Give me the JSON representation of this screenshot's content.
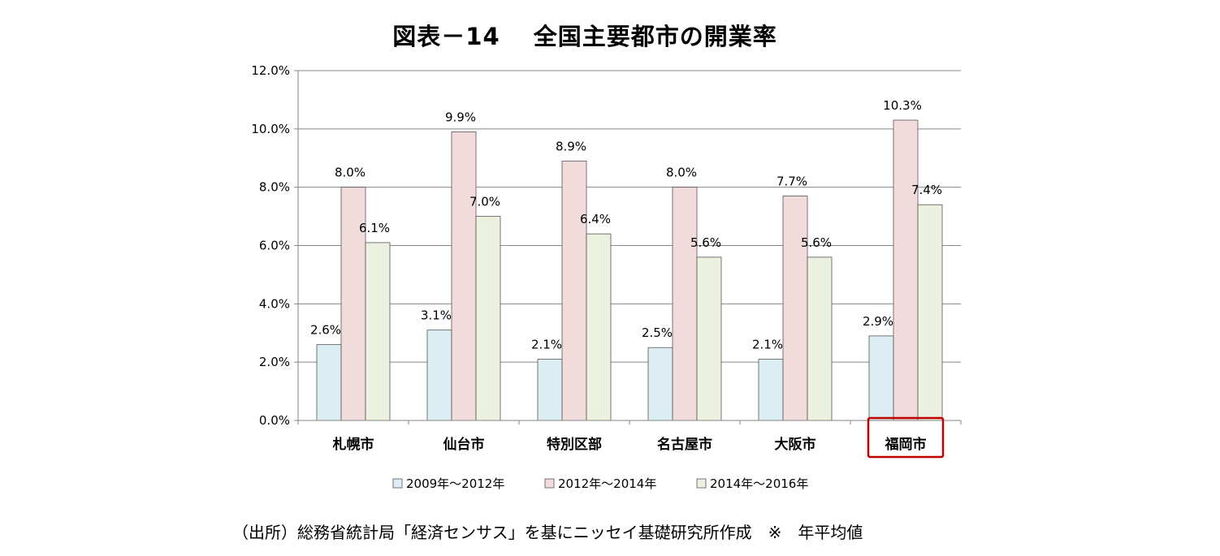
{
  "title": "図表－14　 全国主要都市の開業率",
  "source": "（出所）総務省統計局「経済センサス」を基にニッセイ基礎研究所作成　※　年平均値",
  "chart_data": {
    "type": "bar",
    "categories": [
      "札幌市",
      "仙台市",
      "特別区部",
      "名古屋市",
      "大阪市",
      "福岡市"
    ],
    "highlighted_category": "福岡市",
    "highlight_color": "#c00000",
    "series": [
      {
        "name": "2009年～2012年",
        "values": [
          2.6,
          3.1,
          2.1,
          2.5,
          2.1,
          2.9
        ],
        "color": "#daeef3"
      },
      {
        "name": "2012年～2014年",
        "values": [
          8.0,
          9.9,
          8.9,
          8.0,
          7.7,
          10.3
        ],
        "color": "#f2dcdb"
      },
      {
        "name": "2014年～2016年",
        "values": [
          6.1,
          7.0,
          6.4,
          5.6,
          5.6,
          7.4
        ],
        "color": "#ebf1de"
      }
    ],
    "ylim": [
      0,
      12
    ],
    "yticks": [
      0,
      2,
      4,
      6,
      8,
      10,
      12
    ],
    "ytick_labels": [
      "0.0%",
      "2.0%",
      "4.0%",
      "6.0%",
      "8.0%",
      "10.0%",
      "12.0%"
    ],
    "value_suffix": "%",
    "grid": true,
    "legend_position": "bottom"
  }
}
